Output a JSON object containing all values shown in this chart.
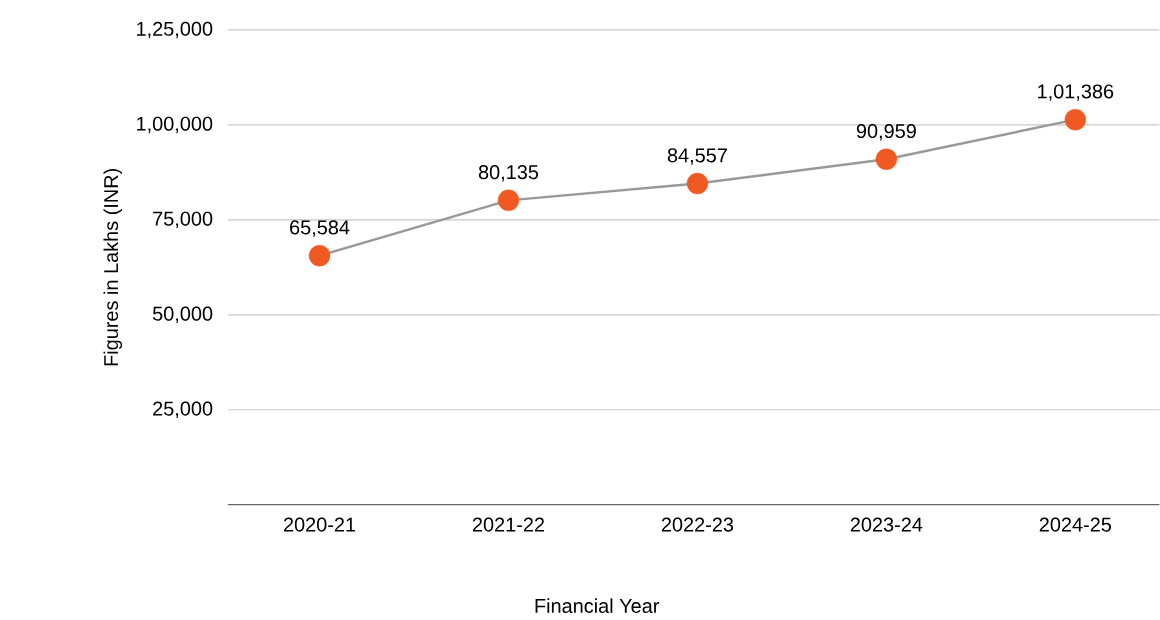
{
  "chart_data": {
    "type": "line",
    "xlabel": "Financial Year",
    "ylabel": "Figures in Lakhs (INR)",
    "categories": [
      "2020-21",
      "2021-22",
      "2022-23",
      "2023-24",
      "2024-25"
    ],
    "series": [
      {
        "color": "#999999",
        "colors": [
          "#f05a22",
          "#f05a22",
          "#f05a22",
          "#f05a22",
          "#f05a22"
        ],
        "values": [
          65584,
          80135,
          84557,
          90959,
          101386
        ],
        "value_labels": [
          "65,584",
          "80,135",
          "84,557",
          "90,959",
          "1,01,386"
        ]
      }
    ],
    "ylim": [
      0,
      125000
    ],
    "yticks": [
      {
        "value": 25000,
        "label": "25,000"
      },
      {
        "value": 50000,
        "label": "50,000"
      },
      {
        "value": 75000,
        "label": "75,000"
      },
      {
        "value": 100000,
        "label": "1,00,000"
      },
      {
        "value": 125000,
        "label": "1,25,000"
      }
    ],
    "grid": "y",
    "marker": "circle",
    "line_style": "solid"
  }
}
